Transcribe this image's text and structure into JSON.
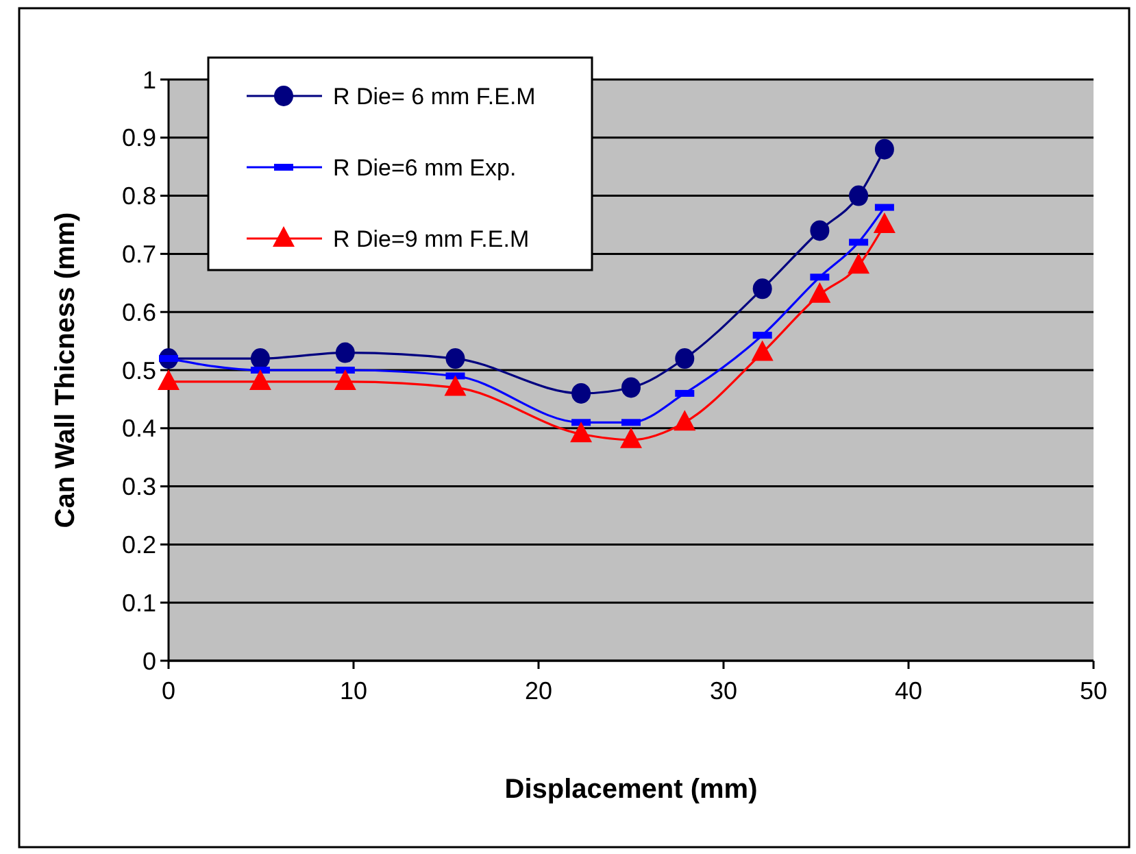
{
  "chart_data": {
    "type": "line",
    "xlabel": "Displacement (mm)",
    "ylabel": "Can Wall Thicness (mm)",
    "x": [
      0,
      4.96,
      9.55,
      15.5,
      22.3,
      25.0,
      27.9,
      32.1,
      35.2,
      37.3,
      38.7
    ],
    "series": [
      {
        "name": "R Die= 6 mm F.E.M",
        "color": "#000080",
        "marker": "circle",
        "values": [
          0.52,
          0.52,
          0.53,
          0.52,
          0.46,
          0.47,
          0.52,
          0.64,
          0.74,
          0.8,
          0.88
        ]
      },
      {
        "name": "R Die=6 mm Exp.",
        "color": "#0000ff",
        "marker": "square",
        "values": [
          0.52,
          0.5,
          0.5,
          0.49,
          0.41,
          0.41,
          0.46,
          0.56,
          0.66,
          0.72,
          0.78
        ]
      },
      {
        "name": "R Die=9 mm F.E.M",
        "color": "#ff0000",
        "marker": "triangle",
        "values": [
          0.48,
          0.48,
          0.48,
          0.47,
          0.39,
          0.38,
          0.41,
          0.53,
          0.63,
          0.68,
          0.75
        ]
      }
    ],
    "xlim": [
      0,
      50
    ],
    "xticks": [
      0,
      10,
      20,
      30,
      40,
      50
    ],
    "ylim": [
      0,
      1
    ],
    "yticks": [
      0,
      {
        "value": 0.1,
        "label": "0.1"
      },
      {
        "value": 0.2,
        "label": "0.2"
      },
      {
        "value": 0.3,
        "label": "0.3"
      },
      {
        "value": 0.4,
        "label": "0.4"
      },
      {
        "value": 0.5,
        "label": "0.5"
      },
      {
        "value": 0.6,
        "label": "0.6"
      },
      {
        "value": 0.7,
        "label": "0.7"
      },
      {
        "value": 0.8,
        "label": "0.8"
      },
      {
        "value": 0.9,
        "label": "0.9"
      },
      1
    ],
    "grid": "y",
    "legend": "top left"
  }
}
